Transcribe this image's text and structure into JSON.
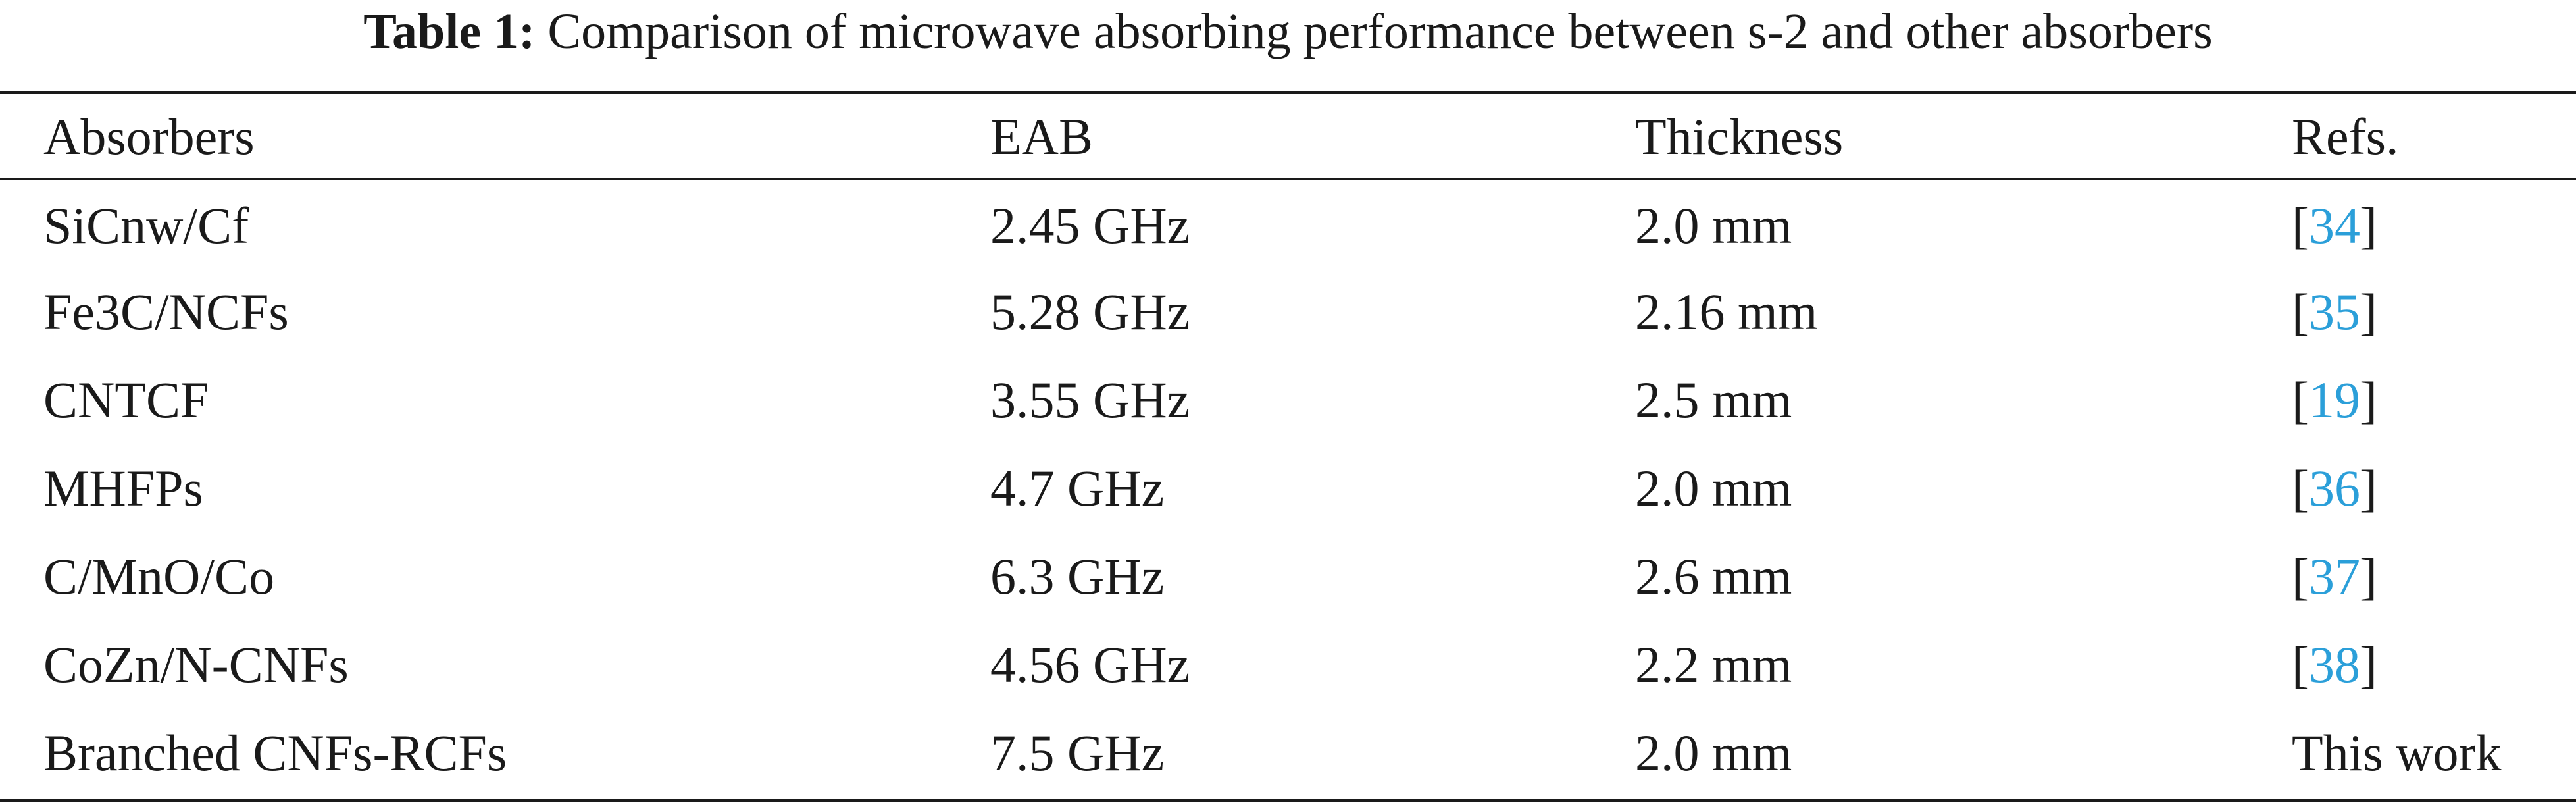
{
  "caption": {
    "label": "Table 1:",
    "text": "Comparison of microwave absorbing performance between s-2 and other absorbers"
  },
  "colors": {
    "text": "#1a1a1a",
    "reference_link": "#2b9fd9"
  },
  "table": {
    "headers": {
      "absorbers": "Absorbers",
      "eab": "EAB",
      "thickness": "Thickness",
      "refs": "Refs."
    },
    "rows": [
      {
        "absorber": "SiCnw/Cf",
        "eab": "2.45 GHz",
        "thickness": "2.0 mm",
        "ref_open": "[",
        "ref": "34",
        "ref_close": "]"
      },
      {
        "absorber": "Fe3C/NCFs",
        "eab": "5.28 GHz",
        "thickness": "2.16 mm",
        "ref_open": "[",
        "ref": "35",
        "ref_close": "]"
      },
      {
        "absorber": "CNTCF",
        "eab": "3.55 GHz",
        "thickness": "2.5 mm",
        "ref_open": "[",
        "ref": "19",
        "ref_close": "]"
      },
      {
        "absorber": "MHFPs",
        "eab": "4.7 GHz",
        "thickness": "2.0 mm",
        "ref_open": "[",
        "ref": "36",
        "ref_close": "]"
      },
      {
        "absorber": "C/MnO/Co",
        "eab": "6.3 GHz",
        "thickness": "2.6 mm",
        "ref_open": "[",
        "ref": "37",
        "ref_close": "]"
      },
      {
        "absorber": "CoZn/N-CNFs",
        "eab": "4.56 GHz",
        "thickness": "2.2 mm",
        "ref_open": "[",
        "ref": "38",
        "ref_close": "]"
      },
      {
        "absorber": "Branched CNFs-RCFs",
        "eab": "7.5 GHz",
        "thickness": "2.0 mm",
        "ref_text": "This work"
      }
    ]
  }
}
